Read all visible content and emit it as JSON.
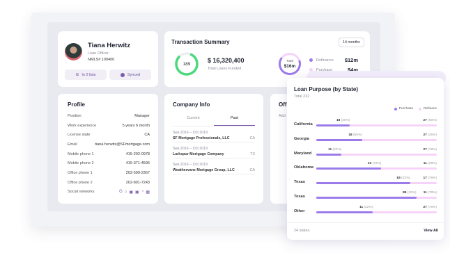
{
  "user": {
    "name": "Tiana Herwitz",
    "role": "Loan Officer",
    "nmls": "NMLS# 100400",
    "lists_label": "In 2 lists",
    "synced_label": "Synced"
  },
  "transaction": {
    "title": "Transaction Summary",
    "period": "14 months",
    "count": "189",
    "amount": "$ 16,320,400",
    "amount_label": "Total Loans Funded",
    "donut_label": "Total",
    "donut_value": "$16m",
    "legend": [
      {
        "label": "Refinance",
        "value": "$12m",
        "color": "#9b7bea"
      },
      {
        "label": "Purchase",
        "value": "$4m",
        "color": "#f6d3f8"
      }
    ],
    "ring_color": "#4cd97b"
  },
  "profile": {
    "title": "Profile",
    "rows": [
      {
        "label": "Position",
        "value": "Manager"
      },
      {
        "label": "Work experience",
        "value": "5 years 6 month"
      },
      {
        "label": "License state",
        "value": "CA"
      },
      {
        "label": "Email",
        "value": "tiana.herwitz@SFmortgage.com"
      },
      {
        "label": "Mobile phone 1",
        "value": "415-202-0978"
      },
      {
        "label": "Mobile phone 2",
        "value": "415-371-4596"
      },
      {
        "label": "Office phone 1",
        "value": "202-599-2367"
      },
      {
        "label": "Office phone 2",
        "value": "202-801-7243"
      }
    ],
    "social_label": "Social networks"
  },
  "company": {
    "title": "Company Info",
    "tabs": [
      "Current",
      "Past"
    ],
    "active_tab": "Past",
    "items": [
      {
        "dates": "Sep 2016 – Oct 2019",
        "name": "SF Mortgage Professionals, LLC",
        "state": "CA"
      },
      {
        "dates": "Sep 2016 – Oct 2019",
        "name": "Larkspur Mortgage Company",
        "state": "TX"
      },
      {
        "dates": "Sep 2016 – Oct 2019",
        "name": "Weathervane Mortgage Group, LLC",
        "state": "CA"
      }
    ]
  },
  "office": {
    "title": "Off",
    "sub": "Add"
  },
  "loan_purpose": {
    "title": "Loan Purpose (by State)",
    "total": "Total 232",
    "legend": [
      "Purchase",
      "Refinace"
    ],
    "footer_count": "24 states",
    "view_all": "View All",
    "rows": [
      {
        "state": "California",
        "purchase": "18",
        "purchase_pct": "(40%)",
        "refinance": "27",
        "refinance_pct": "(60%)",
        "purchase_fraction": 0.28
      },
      {
        "state": "Georgia",
        "purchase": "18",
        "purchase_pct": "(55%)",
        "refinance": "27",
        "refinance_pct": "(45%)",
        "purchase_fraction": 0.38
      },
      {
        "state": "Maryland",
        "purchase": "11",
        "purchase_pct": "(22%)",
        "refinance": "27",
        "refinance_pct": "(78%)",
        "purchase_fraction": 0.21
      },
      {
        "state": "Oklahoma",
        "purchase": "23",
        "purchase_pct": "(72%)",
        "refinance": "11",
        "refinance_pct": "(28%)",
        "purchase_fraction": 0.54
      },
      {
        "state": "Texas",
        "purchase": "83",
        "purchase_pct": "(22%)",
        "refinance": "17",
        "refinance_pct": "(78%)",
        "purchase_fraction": 0.78
      },
      {
        "state": "Texas",
        "purchase": "89",
        "purchase_pct": "(22%)",
        "refinance": "11",
        "refinance_pct": "(78%)",
        "purchase_fraction": 0.83
      },
      {
        "state": "Other",
        "purchase": "11",
        "purchase_pct": "(22%)",
        "refinance": "27",
        "refinance_pct": "(78%)",
        "purchase_fraction": 0.47
      }
    ]
  }
}
